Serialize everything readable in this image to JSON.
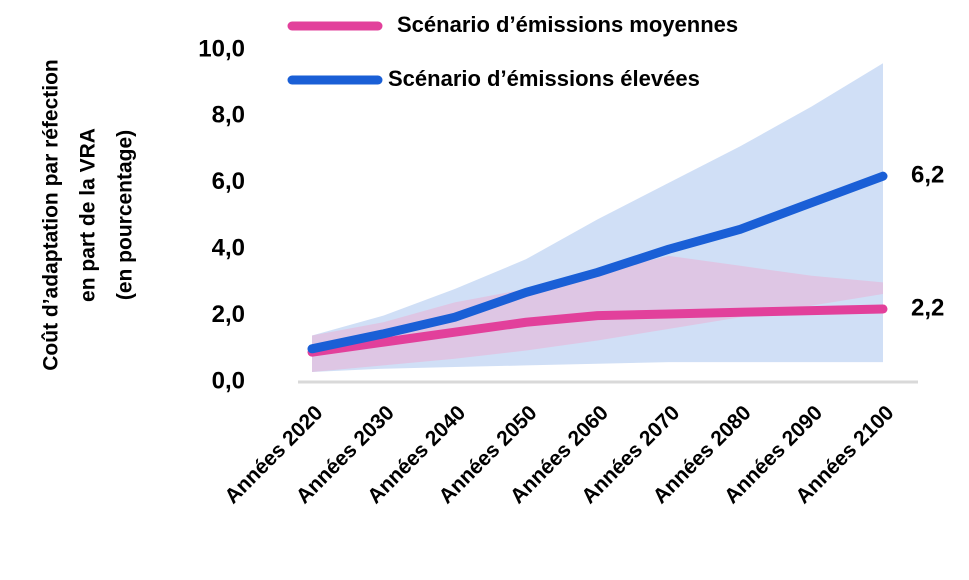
{
  "chart_data": {
    "type": "line",
    "ylabel": [
      "Coût d’adaptation par réfection",
      "en part de la VRA",
      "(en pourcentage)"
    ],
    "categories": [
      "Années 2020",
      "Années 2030",
      "Années 2040",
      "Années 2050",
      "Années 2060",
      "Années 2070",
      "Années 2080",
      "Années 2090",
      "Années 2100"
    ],
    "series": [
      {
        "name": "Scénario d’émissions moyennes",
        "color": "#e2409b",
        "band_color": "#f0a8cf",
        "values": [
          0.9,
          1.2,
          1.5,
          1.8,
          2.0,
          2.05,
          2.1,
          2.15,
          2.2
        ],
        "value_labels": [
          null,
          null,
          null,
          null,
          null,
          null,
          null,
          null,
          "2,2"
        ],
        "lower": [
          0.3,
          0.5,
          0.7,
          0.95,
          1.25,
          1.6,
          1.95,
          2.3,
          2.65
        ],
        "upper": [
          1.4,
          1.8,
          2.4,
          2.8,
          3.3,
          3.8,
          3.5,
          3.2,
          3.0
        ]
      },
      {
        "name": "Scénario d’émissions élevées",
        "color": "#1a5fd6",
        "band_color": "#c8d9f4",
        "values": [
          1.0,
          1.45,
          1.95,
          2.7,
          3.3,
          4.0,
          4.6,
          5.4,
          6.2
        ],
        "value_labels": [
          null,
          null,
          null,
          null,
          null,
          null,
          null,
          null,
          "6,2"
        ],
        "lower": [
          0.3,
          0.4,
          0.45,
          0.5,
          0.55,
          0.6,
          0.6,
          0.6,
          0.6
        ],
        "upper": [
          1.4,
          2.0,
          2.8,
          3.7,
          4.9,
          6.0,
          7.1,
          8.3,
          9.6
        ]
      }
    ],
    "ylim": [
      0,
      10
    ],
    "yticks": [
      {
        "value": 0,
        "label": "0,0"
      },
      {
        "value": 2,
        "label": "2,0"
      },
      {
        "value": 4,
        "label": "4,0"
      },
      {
        "value": 6,
        "label": "6,0"
      },
      {
        "value": 8,
        "label": "8,0"
      },
      {
        "value": 10,
        "label": "10,0"
      }
    ],
    "legend": "top"
  }
}
